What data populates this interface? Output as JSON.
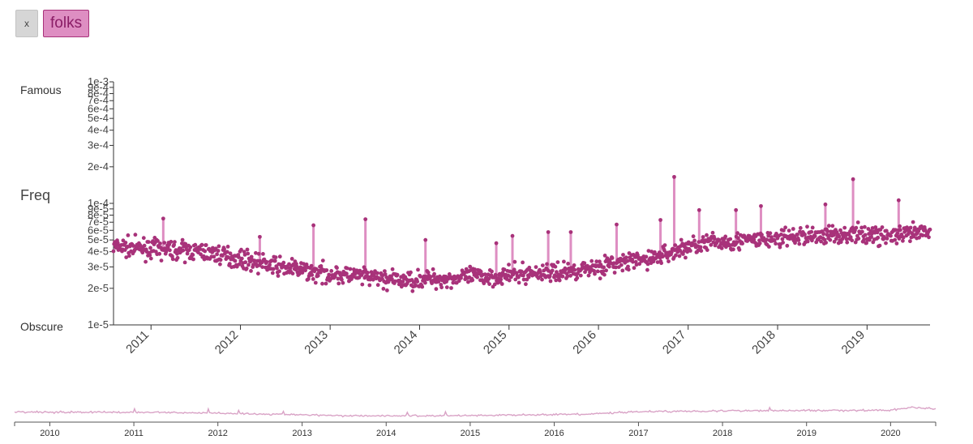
{
  "chips": {
    "remove_label": "x",
    "term": "folks"
  },
  "labels": {
    "famous": "Famous",
    "freq": "Freq",
    "obscure": "Obscure"
  },
  "colors": {
    "series": "#a8327a",
    "spike": "#de8ec2",
    "mini": "#d9a3c6"
  },
  "chart_data": [
    {
      "type": "scatter",
      "title": "",
      "xlabel": "",
      "ylabel": "Freq",
      "y_scale": "log",
      "ylim": [
        1e-05,
        0.001
      ],
      "xlim": [
        "2010-08-01",
        "2019-09-15"
      ],
      "x_ticks": [
        "2011",
        "2012",
        "2013",
        "2014",
        "2015",
        "2016",
        "2017",
        "2018",
        "2019"
      ],
      "y_ticks": [
        "1e-3",
        "9e-4",
        "8e-4",
        "7e-4",
        "6e-4",
        "5e-4",
        "4e-4",
        "3e-4",
        "2e-4",
        "1e-4",
        "9e-5",
        "8e-5",
        "7e-5",
        "6e-5",
        "5e-5",
        "4e-5",
        "3e-5",
        "2e-5",
        "1e-5"
      ],
      "series": [
        {
          "x": [
            "2010-08-01",
            "2010-11-01",
            "2011-02-01",
            "2011-05-01",
            "2011-08-01",
            "2011-11-01",
            "2012-02-01",
            "2012-05-01",
            "2012-08-01",
            "2012-11-01",
            "2013-02-01",
            "2013-05-01",
            "2013-08-01",
            "2013-11-01",
            "2014-02-01",
            "2014-05-01",
            "2014-08-01",
            "2014-11-01",
            "2015-02-01",
            "2015-05-01",
            "2015-08-01",
            "2015-11-01",
            "2016-02-01",
            "2016-05-01",
            "2016-08-01",
            "2016-11-01",
            "2017-02-01",
            "2017-05-01",
            "2017-08-01",
            "2017-11-01",
            "2018-02-01",
            "2018-05-01",
            "2018-08-01",
            "2018-11-01",
            "2019-02-01",
            "2019-05-01",
            "2019-08-01"
          ],
          "values": [
            4.4e-05,
            4.3e-05,
            4.2e-05,
            4.1e-05,
            4e-05,
            3.7e-05,
            3.4e-05,
            3.1e-05,
            2.9e-05,
            2.7e-05,
            2.6e-05,
            2.5e-05,
            2.4e-05,
            2.3e-05,
            2.4e-05,
            2.4e-05,
            2.5e-05,
            2.5e-05,
            2.6e-05,
            2.7e-05,
            2.7e-05,
            2.9e-05,
            3.1e-05,
            3.3e-05,
            3.5e-05,
            4e-05,
            4.6e-05,
            4.8e-05,
            4.9e-05,
            5e-05,
            5.2e-05,
            5.4e-05,
            5.5e-05,
            5.6e-05,
            5.5e-05,
            5.4e-05,
            5.7e-05
          ]
        }
      ],
      "spikes": [
        {
          "x": "2011-02-20",
          "value": 7.5e-05
        },
        {
          "x": "2012-03-20",
          "value": 5.3e-05
        },
        {
          "x": "2012-10-25",
          "value": 6.6e-05
        },
        {
          "x": "2013-05-25",
          "value": 7.4e-05
        },
        {
          "x": "2014-01-25",
          "value": 5e-05
        },
        {
          "x": "2014-11-10",
          "value": 4.7e-05
        },
        {
          "x": "2015-01-15",
          "value": 5.4e-05
        },
        {
          "x": "2015-06-10",
          "value": 5.8e-05
        },
        {
          "x": "2015-09-10",
          "value": 5.8e-05
        },
        {
          "x": "2016-03-15",
          "value": 6.7e-05
        },
        {
          "x": "2016-09-10",
          "value": 7.3e-05
        },
        {
          "x": "2016-11-05",
          "value": 0.000165
        },
        {
          "x": "2017-02-15",
          "value": 8.8e-05
        },
        {
          "x": "2017-07-15",
          "value": 8.8e-05
        },
        {
          "x": "2017-10-25",
          "value": 9.5e-05
        },
        {
          "x": "2018-07-15",
          "value": 9.8e-05
        },
        {
          "x": "2018-11-05",
          "value": 0.000158
        },
        {
          "x": "2019-05-10",
          "value": 0.000106
        }
      ]
    },
    {
      "type": "line",
      "title": "",
      "xlabel": "",
      "ylabel": "",
      "x_ticks": [
        "2010",
        "2011",
        "2012",
        "2013",
        "2014",
        "2015",
        "2016",
        "2017",
        "2018",
        "2019",
        "2020"
      ],
      "xlim": [
        "2009-08-01",
        "2020-07-15"
      ],
      "series": [
        {
          "x": [
            "2009-08-01",
            "2010-06-01",
            "2011-06-01",
            "2012-06-01",
            "2013-06-01",
            "2014-06-01",
            "2015-06-01",
            "2016-06-01",
            "2016-12-01",
            "2017-06-01",
            "2018-06-01",
            "2019-06-01",
            "2020-01-01",
            "2020-04-01",
            "2020-07-15"
          ],
          "values": [
            4.4e-05,
            4.3e-05,
            4.1e-05,
            3.3e-05,
            2.5e-05,
            2.4e-05,
            2.7e-05,
            3.1e-05,
            4.5e-05,
            4.9e-05,
            5.4e-05,
            5.6e-05,
            5.7e-05,
            9e-05,
            7e-05
          ]
        }
      ]
    }
  ]
}
